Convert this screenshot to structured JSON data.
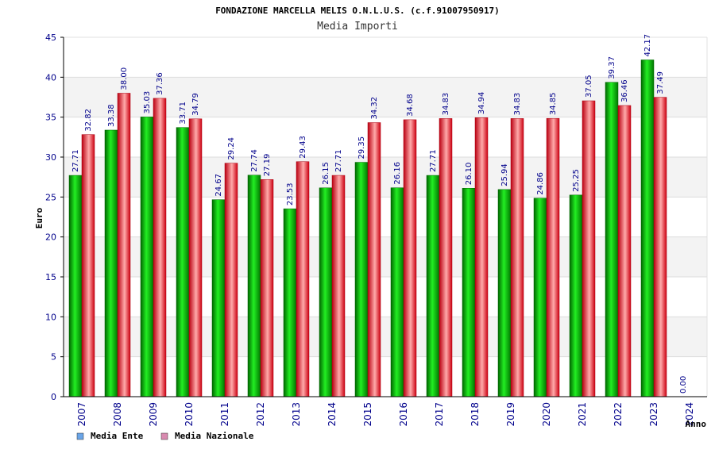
{
  "chart_data": {
    "type": "bar",
    "title": "FONDAZIONE MARCELLA MELIS O.N.L.U.S. (c.f.91007950917)",
    "subtitle": "Media Importi",
    "ylabel": "Euro",
    "xlabel": "Anno",
    "ylim": [
      0,
      45
    ],
    "yticks": [
      0,
      5,
      10,
      15,
      20,
      25,
      30,
      35,
      40,
      45
    ],
    "grid": true,
    "legend_placement": "bottom-left",
    "categories": [
      "2007",
      "2008",
      "2009",
      "2010",
      "2011",
      "2012",
      "2013",
      "2014",
      "2015",
      "2016",
      "2017",
      "2018",
      "2019",
      "2020",
      "2021",
      "2022",
      "2023",
      "2024"
    ],
    "series": [
      {
        "name": "Media Ente",
        "color": "#00bb00",
        "legend_color": "#6aa5e8",
        "values": [
          27.71,
          33.38,
          35.03,
          33.71,
          24.67,
          27.74,
          23.53,
          26.15,
          29.35,
          26.16,
          27.71,
          26.1,
          25.94,
          24.86,
          25.25,
          39.37,
          42.17,
          0.0
        ],
        "labels": [
          "27.71",
          "33.38",
          "35.03",
          "33.71",
          "24.67",
          "27.74",
          "23.53",
          "26.15",
          "29.35",
          "26.16",
          "27.71",
          "26.10",
          "25.94",
          "24.86",
          "25.25",
          "39.37",
          "42.17",
          "0.00"
        ]
      },
      {
        "name": "Media Nazionale",
        "color": "#dd1122",
        "legend_color": "#d98ab0",
        "values": [
          32.82,
          38.0,
          37.36,
          34.79,
          29.24,
          27.19,
          29.43,
          27.71,
          34.32,
          34.68,
          34.83,
          34.94,
          34.83,
          34.85,
          37.05,
          36.46,
          37.49,
          null
        ],
        "labels": [
          "32.82",
          "38.00",
          "37.36",
          "34.79",
          "29.24",
          "27.19",
          "29.43",
          "27.71",
          "34.32",
          "34.68",
          "34.83",
          "34.94",
          "34.83",
          "34.85",
          "37.05",
          "36.46",
          "37.49",
          ""
        ]
      }
    ]
  }
}
